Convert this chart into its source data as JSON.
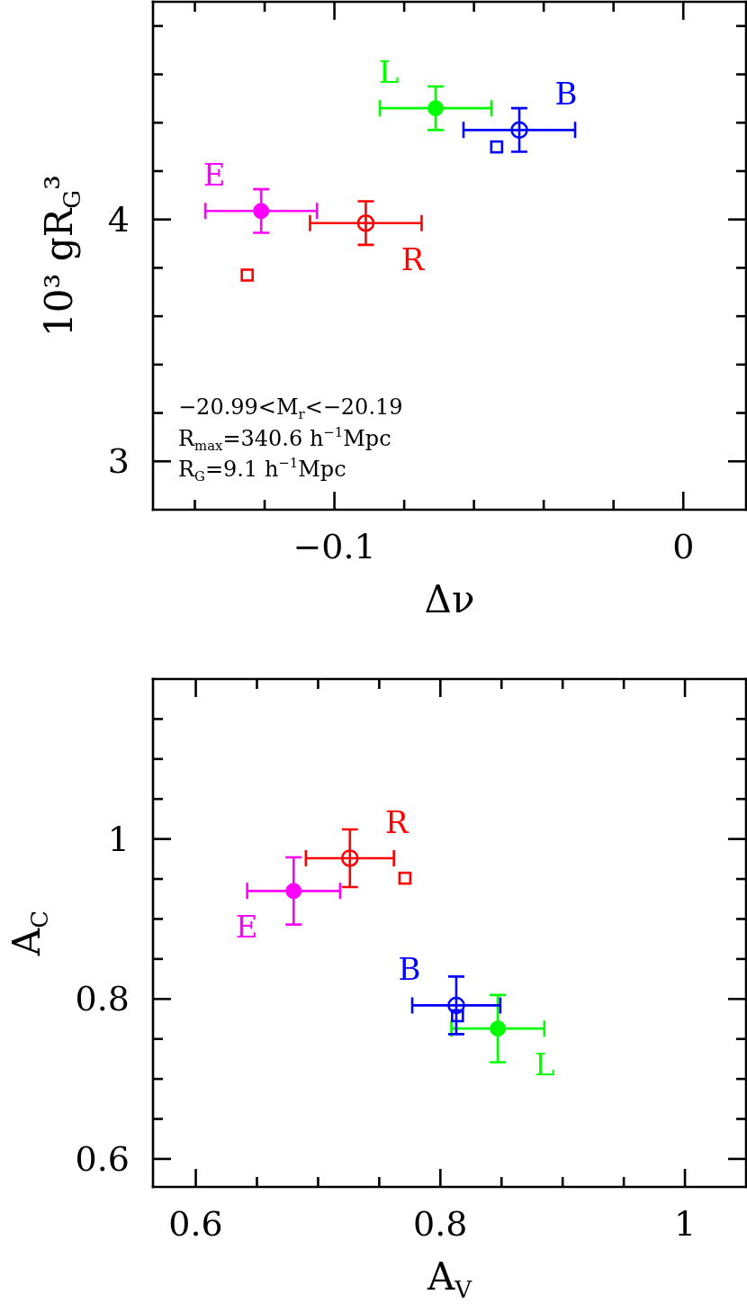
{
  "chart_data": [
    {
      "type": "scatter",
      "xlabel": "Δν",
      "ylabel": "10³ gR$_{G}$³",
      "xlim": [
        -0.152,
        0.018
      ],
      "ylim": [
        2.8,
        4.9
      ],
      "xticks": [
        {
          "value": -0.14,
          "label": null
        },
        {
          "value": -0.12,
          "label": null
        },
        {
          "value": -0.1,
          "label": "−0.1"
        },
        {
          "value": -0.08,
          "label": null
        },
        {
          "value": -0.06,
          "label": null
        },
        {
          "value": -0.04,
          "label": null
        },
        {
          "value": -0.02,
          "label": null
        },
        0
      ],
      "yticks": [
        3,
        {
          "value": 3.2,
          "label": null
        },
        {
          "value": 3.4,
          "label": null
        },
        {
          "value": 3.6,
          "label": null
        },
        {
          "value": 3.8,
          "label": null
        },
        4,
        {
          "value": 4.2,
          "label": null
        },
        {
          "value": 4.4,
          "label": null
        },
        {
          "value": 4.6,
          "label": null
        },
        {
          "value": 4.8,
          "label": null
        }
      ],
      "annotations": [
        "−20.99<M$_{r}$<−20.19",
        "R$_{max}$=340.6 h$^{−1}$Mpc",
        "R$_{G}$=9.1 h$^{−1}$Mpc"
      ],
      "series": [
        {
          "name": "L",
          "color": "#00ff00",
          "marker": "circle",
          "x": [
            -0.071
          ],
          "values": [
            4.46
          ],
          "errors": [
            0.09
          ],
          "xerrors": [
            0.016
          ]
        },
        {
          "name": "B",
          "color": "#0000ff",
          "marker": "circle-open",
          "x": [
            -0.047
          ],
          "values": [
            4.37
          ],
          "errors": [
            0.09
          ],
          "xerrors": [
            0.016
          ]
        },
        {
          "name": "E",
          "color": "#ff00ff",
          "marker": "circle",
          "x": [
            -0.121
          ],
          "values": [
            4.035
          ],
          "errors": [
            0.09
          ],
          "xerrors": [
            0.016
          ]
        },
        {
          "name": "R",
          "color": "#ff0000",
          "marker": "circle-open",
          "x": [
            -0.091
          ],
          "values": [
            3.985
          ],
          "errors": [
            0.09
          ],
          "xerrors": [
            0.016
          ]
        },
        {
          "color": "#ff0000",
          "marker": "square-open",
          "x": [
            -0.125
          ],
          "values": [
            3.77
          ]
        },
        {
          "color": "#0000ff",
          "marker": "square-open",
          "x": [
            -0.0535
          ],
          "values": [
            4.3
          ]
        }
      ]
    },
    {
      "type": "scatter",
      "xlabel": "A$_{V}$",
      "ylabel": "A$_{C}$",
      "xlim": [
        0.565,
        1.05
      ],
      "ylim": [
        0.565,
        1.2
      ],
      "xticks": [
        0.6,
        {
          "value": 0.65,
          "label": null
        },
        {
          "value": 0.7,
          "label": null
        },
        {
          "value": 0.75,
          "label": null
        },
        0.8,
        {
          "value": 0.85,
          "label": null
        },
        {
          "value": 0.9,
          "label": null
        },
        {
          "value": 0.95,
          "label": null
        },
        1
      ],
      "yticks": [
        0.6,
        {
          "value": 0.65,
          "label": null
        },
        {
          "value": 0.7,
          "label": null
        },
        {
          "value": 0.75,
          "label": null
        },
        0.8,
        {
          "value": 0.85,
          "label": null
        },
        {
          "value": 0.9,
          "label": null
        },
        {
          "value": 0.95,
          "label": null
        },
        1,
        {
          "value": 1.05,
          "label": null
        },
        {
          "value": 1.1,
          "label": null
        },
        {
          "value": 1.15,
          "label": null
        }
      ],
      "series": [
        {
          "name": "L",
          "color": "#00ff00",
          "marker": "circle",
          "x": [
            0.847
          ],
          "values": [
            0.763
          ],
          "errors": [
            0.042
          ],
          "xerrors": [
            0.038
          ]
        },
        {
          "name": "B",
          "color": "#0000ff",
          "marker": "circle-open",
          "x": [
            0.813
          ],
          "values": [
            0.792
          ],
          "errors": [
            0.036
          ],
          "xerrors": [
            0.036
          ]
        },
        {
          "name": "E",
          "color": "#ff00ff",
          "marker": "circle",
          "x": [
            0.68
          ],
          "values": [
            0.935
          ],
          "errors": [
            0.042
          ],
          "xerrors": [
            0.038
          ]
        },
        {
          "name": "R",
          "color": "#ff0000",
          "marker": "circle-open",
          "x": [
            0.726
          ],
          "values": [
            0.976
          ],
          "errors": [
            0.036
          ],
          "xerrors": [
            0.036
          ]
        },
        {
          "color": "#ff0000",
          "marker": "square-open",
          "x": [
            0.771
          ],
          "values": [
            0.951
          ]
        },
        {
          "color": "#0000ff",
          "marker": "square-open",
          "x": [
            0.814
          ],
          "values": [
            0.779
          ]
        }
      ]
    }
  ]
}
